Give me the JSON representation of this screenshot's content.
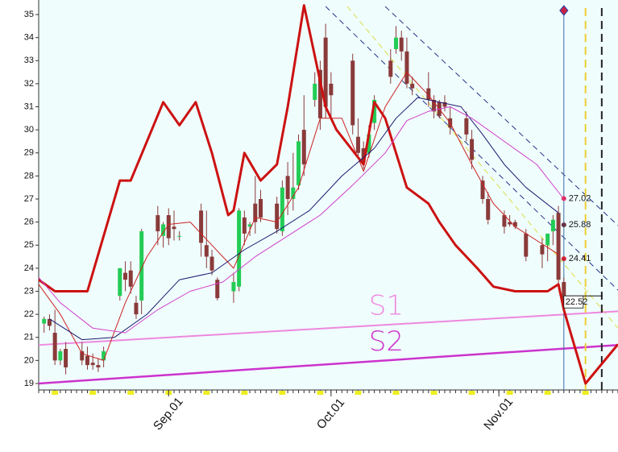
{
  "chart_data": {
    "type": "candlestick",
    "up_color": "#22cc55",
    "down_color": "#8a3a3a",
    "xlim": [
      0,
      107
    ],
    "ylim": [
      18.72,
      35.63
    ],
    "yticks": [
      19,
      20,
      21,
      22,
      23,
      24,
      25,
      26,
      27,
      28,
      29,
      30,
      31,
      32,
      33,
      34,
      35
    ],
    "xticks": [
      {
        "value": 24,
        "label": "Sep.01"
      },
      {
        "value": 54,
        "label": "Oct.01"
      },
      {
        "value": 85,
        "label": "Nov.01"
      }
    ],
    "x": [
      1,
      2,
      3,
      4,
      5,
      8,
      9,
      10,
      11,
      12,
      15,
      16,
      17,
      18,
      19,
      22,
      23,
      24,
      25,
      26,
      30,
      31,
      32,
      33,
      36,
      37,
      38,
      39,
      40,
      41,
      44,
      45,
      46,
      47,
      48,
      49,
      51,
      52,
      53,
      54,
      58,
      59,
      60,
      61,
      62,
      65,
      66,
      67,
      68,
      69,
      72,
      73,
      74,
      75,
      76,
      79,
      80,
      82,
      83,
      86,
      87,
      88,
      90,
      93,
      94,
      95,
      96,
      97
    ],
    "open": [
      21.6,
      21.8,
      21.2,
      20.0,
      20.5,
      20.4,
      20.2,
      19.9,
      19.8,
      20.0,
      22.8,
      23.8,
      23.9,
      22.5,
      22.6,
      26.3,
      25.4,
      26.3,
      25.8,
      25.4,
      26.5,
      25.0,
      24.5,
      23.5,
      23.0,
      23.2,
      26.2,
      25.8,
      26.8,
      27.0,
      26.8,
      25.6,
      28.0,
      27.0,
      27.6,
      30.0,
      31.3,
      32.6,
      34.0,
      32.0,
      33.0,
      29.7,
      29.2,
      29.0,
      30.3,
      33.0,
      33.5,
      34.0,
      33.4,
      32.0,
      31.8,
      31.3,
      31.2,
      31.2,
      30.5,
      30.5,
      29.6,
      27.8,
      27.0,
      26.3,
      26.0,
      26.0,
      25.5,
      25.0,
      25.0,
      25.6,
      26.4,
      23.4
    ],
    "high": [
      21.9,
      22.0,
      22.2,
      20.5,
      20.8,
      20.8,
      20.6,
      20.3,
      20.1,
      20.6,
      24.0,
      24.3,
      24.3,
      22.8,
      25.7,
      26.7,
      26.0,
      26.6,
      26.5,
      25.6,
      26.8,
      26.5,
      24.8,
      23.6,
      23.8,
      26.6,
      26.5,
      26.0,
      28.0,
      27.4,
      27.1,
      27.8,
      28.6,
      29.0,
      29.8,
      31.5,
      32.5,
      33.0,
      34.6,
      32.5,
      33.3,
      30.5,
      29.5,
      30.2,
      31.5,
      33.5,
      34.5,
      34.3,
      34.0,
      32.3,
      32.5,
      31.5,
      31.3,
      31.5,
      31.0,
      30.8,
      30.0,
      28.0,
      27.3,
      26.5,
      26.3,
      26.1,
      25.7,
      25.3,
      25.5,
      26.3,
      26.7,
      23.6
    ],
    "low": [
      21.2,
      21.3,
      19.8,
      19.8,
      19.4,
      19.8,
      19.6,
      19.6,
      19.5,
      19.7,
      22.6,
      23.0,
      22.9,
      21.8,
      22.0,
      25.0,
      24.9,
      25.0,
      25.2,
      25.2,
      24.5,
      24.0,
      23.7,
      22.6,
      22.5,
      23.0,
      25.0,
      25.4,
      25.5,
      26.0,
      25.5,
      25.4,
      26.3,
      26.5,
      27.4,
      28.0,
      31.0,
      30.0,
      30.5,
      30.5,
      29.8,
      28.8,
      28.3,
      28.8,
      30.0,
      32.0,
      33.3,
      33.0,
      31.8,
      31.5,
      31.0,
      30.5,
      30.5,
      30.8,
      29.8,
      29.5,
      28.3,
      26.8,
      25.9,
      25.5,
      25.8,
      25.7,
      24.3,
      24.0,
      24.3,
      25.0,
      23.2,
      22.4
    ],
    "close": [
      21.8,
      21.5,
      20.0,
      20.4,
      19.7,
      20.0,
      19.8,
      19.8,
      19.7,
      20.4,
      24.0,
      23.5,
      23.2,
      22.0,
      25.6,
      25.6,
      25.9,
      25.3,
      25.7,
      25.4,
      25.1,
      24.5,
      23.9,
      22.7,
      23.4,
      26.5,
      25.5,
      25.9,
      26.0,
      26.2,
      25.7,
      27.5,
      27.0,
      27.5,
      29.5,
      28.5,
      32.0,
      30.5,
      31.0,
      31.5,
      30.2,
      29.0,
      28.6,
      29.8,
      31.3,
      32.3,
      34.0,
      33.4,
      32.0,
      31.8,
      31.3,
      30.8,
      30.6,
      31.0,
      30.1,
      29.8,
      28.7,
      27.0,
      26.1,
      25.8,
      25.9,
      25.8,
      24.5,
      24.6,
      25.5,
      26.1,
      23.5,
      22.5
    ],
    "lines": [
      {
        "color": "#cc1111",
        "width": 3,
        "x": [
          0,
          3,
          9,
          15,
          17,
          23,
          26,
          29,
          32,
          35,
          36,
          38,
          41,
          44,
          46,
          49,
          53,
          55,
          60,
          62,
          64,
          68,
          72,
          74,
          77,
          81,
          84,
          88,
          94,
          96,
          97,
          101,
          107
        ],
        "values": [
          23.5,
          23.0,
          23.0,
          27.8,
          27.8,
          31.2,
          30.2,
          31.2,
          29.0,
          26.3,
          26.5,
          29.0,
          27.8,
          28.5,
          31.0,
          35.4,
          31.0,
          30.0,
          28.5,
          31.2,
          30.5,
          27.5,
          26.8,
          26.0,
          25.0,
          24.0,
          23.2,
          23.0,
          23.0,
          23.3,
          22.2,
          19.0,
          20.7
        ]
      },
      {
        "color": "#cc2222",
        "width": 1,
        "x": [
          0,
          4,
          8,
          12,
          16,
          20,
          24,
          28,
          32,
          36,
          40,
          44,
          48,
          52,
          56,
          60,
          64,
          68,
          72,
          76,
          80,
          84,
          88,
          92,
          96
        ],
        "values": [
          23.3,
          22.0,
          20.3,
          20.0,
          22.5,
          24.5,
          25.9,
          26.0,
          25.0,
          24.0,
          26.2,
          26.0,
          27.5,
          30.5,
          30.5,
          28.2,
          31.0,
          32.5,
          31.5,
          30.3,
          28.5,
          26.8,
          25.8,
          25.2,
          24.6
        ]
      },
      {
        "color": "#1a1a6e",
        "width": 1,
        "x": [
          2,
          8,
          14,
          20,
          26,
          32,
          38,
          44,
          50,
          56,
          62,
          66,
          70,
          74,
          78,
          82,
          86,
          90,
          96
        ],
        "values": [
          21.8,
          20.9,
          21.0,
          22.0,
          23.5,
          23.8,
          24.8,
          25.6,
          26.5,
          28.0,
          29.2,
          30.5,
          31.4,
          31.2,
          31.0,
          29.8,
          28.5,
          27.5,
          26.4
        ]
      },
      {
        "color": "#d040c8",
        "width": 1,
        "x": [
          0,
          4,
          10,
          16,
          22,
          28,
          34,
          40,
          46,
          52,
          58,
          64,
          68,
          72,
          76,
          80,
          86,
          92,
          97
        ],
        "values": [
          23.6,
          22.5,
          21.4,
          21.2,
          22.2,
          23.0,
          23.4,
          24.5,
          25.4,
          26.3,
          27.6,
          29.0,
          30.4,
          30.8,
          31.0,
          30.5,
          29.5,
          28.5,
          27.0
        ]
      }
    ],
    "trendlines": [
      {
        "name": "S1",
        "color": "#ee88dd",
        "width": 2,
        "x": [
          0,
          107
        ],
        "values": [
          20.67,
          22.13
        ]
      },
      {
        "name": "S2",
        "color": "#cc33cc",
        "width": 2.5,
        "x": [
          0,
          107
        ],
        "values": [
          19.0,
          20.67
        ]
      }
    ],
    "channels": [
      {
        "color": "#223388",
        "x": [
          53,
          107
        ],
        "values": [
          35.35,
          23.05
        ]
      },
      {
        "color": "#223388",
        "x": [
          64,
          107
        ],
        "values": [
          35.35,
          25.85
        ]
      },
      {
        "color": "#dddd44",
        "x": [
          57,
          107
        ],
        "values": [
          35.35,
          21.4
        ]
      }
    ],
    "vlines": [
      {
        "x": 97,
        "color": "#3a6ea5",
        "dash": false
      },
      {
        "x": 101,
        "color": "#eecc33",
        "dash": true
      },
      {
        "x": 104,
        "color": "#222222",
        "dash": true
      }
    ],
    "markers": [
      {
        "x": 97,
        "value": 27.02,
        "color": "#e0306a"
      },
      {
        "x": 97,
        "value": 25.88,
        "color": "#663344"
      },
      {
        "x": 97,
        "value": 24.41,
        "color": "#cc2233"
      }
    ],
    "last_price": {
      "x": 97,
      "value": 22.52
    }
  }
}
